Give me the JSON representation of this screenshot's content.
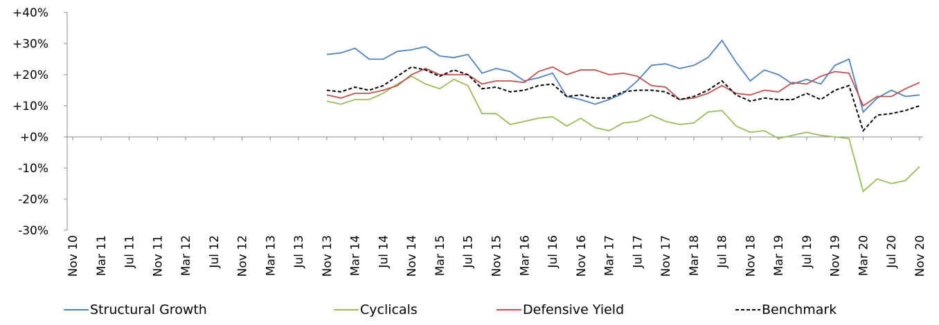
{
  "chart_data": {
    "type": "line",
    "categories": [
      "Nov 10",
      null,
      "Mar 11",
      null,
      "Jul 11",
      null,
      "Nov 11",
      null,
      "Mar 12",
      null,
      "Jul 12",
      null,
      "Nov 12",
      null,
      "Mar 13",
      null,
      "Jul 13",
      null,
      "Nov 13",
      null,
      "Mar 14",
      null,
      "Jul 14",
      null,
      "Nov 14",
      null,
      "Mar 15",
      null,
      "Jul 15",
      null,
      "Nov 15",
      null,
      "Mar 16",
      null,
      "Jul 16",
      null,
      "Nov 16",
      null,
      "Mar 17",
      null,
      "Jul 17",
      null,
      "Nov 17",
      null,
      "Mar 18",
      null,
      "Jul 18",
      null,
      "Nov 18",
      null,
      "Mar 19",
      null,
      "Jul 19",
      null,
      "Nov 19",
      null,
      "Mar 20",
      null,
      "Jul 20",
      null,
      "Nov 20"
    ],
    "series": [
      {
        "name": "Structural Growth",
        "color": "#4f81bd",
        "dash": false,
        "values": [
          null,
          null,
          null,
          null,
          null,
          null,
          null,
          null,
          null,
          null,
          null,
          null,
          null,
          null,
          null,
          null,
          null,
          null,
          26.5,
          27,
          28.5,
          25,
          25,
          27.5,
          28,
          29,
          26,
          25.5,
          26.5,
          20.5,
          22,
          21,
          18,
          19,
          20.5,
          13,
          12,
          10.5,
          12,
          14,
          18,
          23,
          23.5,
          22,
          23,
          25.5,
          31,
          24,
          18,
          21.5,
          20,
          17,
          18.5,
          17,
          23,
          25,
          8,
          12.5,
          15,
          13,
          13.5
        ]
      },
      {
        "name": "Cyclicals",
        "color": "#9bbb59",
        "dash": false,
        "values": [
          null,
          null,
          null,
          null,
          null,
          null,
          null,
          null,
          null,
          null,
          null,
          null,
          null,
          null,
          null,
          null,
          null,
          null,
          11.5,
          10.5,
          12,
          12,
          14,
          17,
          19.5,
          17,
          15.5,
          18.5,
          16.5,
          7.5,
          7.5,
          4,
          5,
          6,
          6.5,
          3.5,
          6,
          3,
          2,
          4.5,
          5,
          7,
          5,
          4,
          4.5,
          8,
          8.5,
          3.5,
          1.5,
          2,
          -0.5,
          0.5,
          1.5,
          0.5,
          0,
          -0.5,
          -17.5,
          -13.5,
          -15,
          -14,
          -9.5
        ]
      },
      {
        "name": "Defensive Yield",
        "color": "#c0504d",
        "dash": false,
        "values": [
          null,
          null,
          null,
          null,
          null,
          null,
          null,
          null,
          null,
          null,
          null,
          null,
          null,
          null,
          null,
          null,
          null,
          null,
          13.5,
          12.5,
          14,
          14,
          15,
          16.5,
          20,
          22,
          20,
          20,
          20,
          17,
          18,
          18,
          17.5,
          21,
          22.5,
          20,
          21.5,
          21.5,
          20,
          20.5,
          19.5,
          16.5,
          16,
          12,
          12.5,
          14,
          16.5,
          14,
          13.5,
          15,
          14.5,
          17.5,
          17,
          19.5,
          21,
          20.5,
          10,
          13,
          13,
          15.5,
          17.5
        ]
      },
      {
        "name": "Benchmark",
        "color": "#000000",
        "dash": true,
        "values": [
          null,
          null,
          null,
          null,
          null,
          null,
          null,
          null,
          null,
          null,
          null,
          null,
          null,
          null,
          null,
          null,
          null,
          null,
          15,
          14.5,
          16,
          15,
          16.5,
          19.5,
          22.5,
          21.5,
          19.5,
          21.5,
          20,
          15.5,
          16,
          14.5,
          15,
          16.5,
          17,
          13,
          13.5,
          12.5,
          12.5,
          14.5,
          15,
          15,
          14.5,
          12,
          13,
          15,
          18,
          13.5,
          11.5,
          12.5,
          12,
          12,
          14,
          12,
          15,
          16.5,
          2,
          7,
          7.5,
          8.5,
          10
        ]
      }
    ],
    "ylim": [
      -30,
      40
    ],
    "yticks": [
      {
        "value": -30,
        "label": "-30%"
      },
      {
        "value": -20,
        "label": "-20%"
      },
      {
        "value": -10,
        "label": "-10%"
      },
      {
        "value": 0,
        "label": "+0%"
      },
      {
        "value": 10,
        "label": "+10%"
      },
      {
        "value": 20,
        "label": "+20%"
      },
      {
        "value": 30,
        "label": "+30%"
      },
      {
        "value": 40,
        "label": "+40%"
      }
    ],
    "legend": "bottom"
  }
}
